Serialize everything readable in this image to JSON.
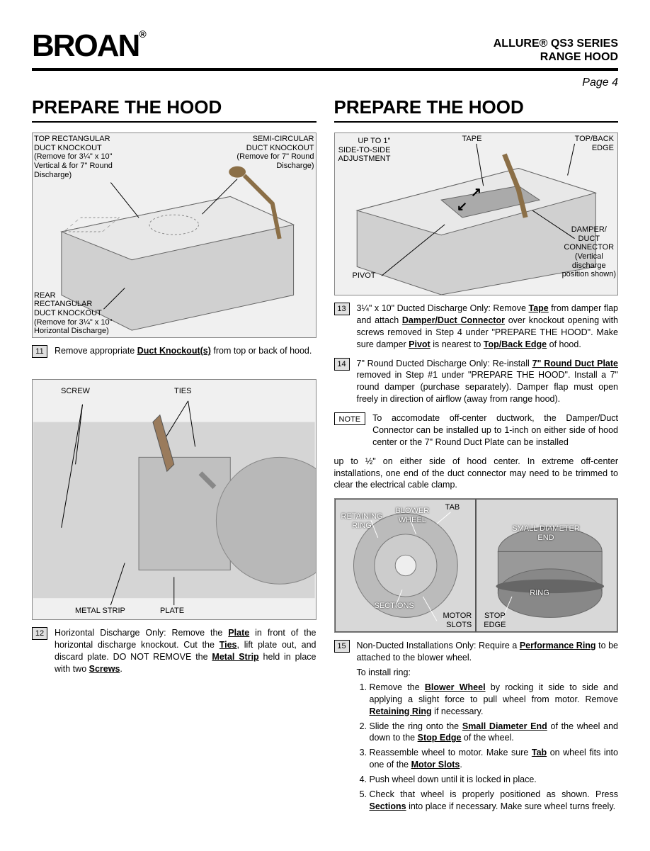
{
  "header": {
    "logo": "BROAN",
    "product_line": "ALLURE® QS3 SERIES",
    "product_type": "RANGE HOOD",
    "page": "Page 4"
  },
  "left": {
    "title": "PREPARE THE HOOD",
    "fig1": {
      "lbl_top_rect": "TOP RECTANGULAR\nDUCT KNOCKOUT",
      "lbl_top_rect_it": "(Remove for 3¼\" x 10\"\nVertical & for 7\" Round\nDischarge)",
      "lbl_semi": "SEMI-CIRCULAR\nDUCT KNOCKOUT",
      "lbl_semi_it": "(Remove for 7\" Round\nDischarge)",
      "lbl_rear": "REAR\nRECTANGULAR\nDUCT KNOCKOUT",
      "lbl_rear_it": "(Remove for 3¼\" x 10\"\nHorizontal Discharge)"
    },
    "step11": {
      "num": "11",
      "text": "Remove appropriate <span class='u'>Duct Knockout(s)</span> from top or back of hood."
    },
    "fig2": {
      "lbl_screw": "SCREW",
      "lbl_ties": "TIES",
      "lbl_metal_strip": "METAL STRIP",
      "lbl_plate": "PLATE"
    },
    "step12": {
      "num": "12",
      "text": "Horizontal Discharge Only: Remove the <span class='u'>Plate</span> in front of the horizontal discharge knockout. Cut the <span class='u'>Ties</span>, lift plate out, and discard plate. DO NOT REMOVE the <span class='u'>Metal Strip</span> held in place with two <span class='u'>Screws</span>."
    }
  },
  "right": {
    "title": "PREPARE THE HOOD",
    "fig3": {
      "lbl_adjust": "UP TO 1\"\nSIDE-TO-SIDE\nADJUSTMENT",
      "lbl_tape": "TAPE",
      "lbl_topedge": "TOP/BACK\nEDGE",
      "lbl_damper": "DAMPER/\nDUCT\nCONNECTOR",
      "lbl_damper_it": "(Vertical\ndischarge\nposition shown)",
      "lbl_pivot": "PIVOT"
    },
    "step13": {
      "num": "13",
      "text": "3¼\" x 10\" Ducted Discharge Only: Remove <span class='u'>Tape</span> from damper flap and attach <span class='u'>Damper/Duct Connector</span> over knockout opening with screws removed in Step 4 under \"PREPARE THE HOOD\". Make sure damper <span class='u'>Pivot</span> is nearest to <span class='u'>Top/Back Edge</span> of hood."
    },
    "step14": {
      "num": "14",
      "text": "7\" Round Ducted Discharge Only: Re-install <span class='u'>7\" Round Duct Plate</span> removed in Step #1 under \"PREPARE THE HOOD\". Install a 7\" round damper (purchase separately). Damper flap must open freely in direction of airflow (away from range hood)."
    },
    "note": {
      "label": "NOTE",
      "text": "To accomodate off-center ductwork, the Damper/Duct Connector can be installed up to 1-inch on either side of hood center or the 7\" Round Duct Plate can be installed"
    },
    "note_cont": "up to ½\" on either side of hood center. In extreme off-center installations, one end of the duct connector may need to be trimmed to clear the electrical cable clamp.",
    "fig4": {
      "lbl_retaining": "RETAINING\nRING",
      "lbl_blower": "BLOWER\nWHEEL",
      "lbl_tab": "TAB",
      "lbl_sections": "SECTIONS",
      "lbl_motor_slots": "MOTOR\nSLOTS",
      "lbl_small": "SMALL DIAMETER\nEND",
      "lbl_ring": "RING",
      "lbl_stop": "STOP\nEDGE"
    },
    "step15": {
      "num": "15",
      "text": "Non-Ducted Installations Only: Require a <span class='u'>Performance Ring</span> to be attached to the blower wheel.",
      "intro": "To install ring:",
      "items": [
        "Remove the <span class='u'>Blower Wheel</span> by rocking it side to side and applying a slight force to pull wheel from motor. Remove <span class='u'>Retaining Ring</span> if necessary.",
        "Slide the ring onto the <span class='u'>Small Diameter End</span> of the wheel and down to the <span class='u'>Stop Edge</span> of the wheel.",
        "Reassemble wheel to motor. Make sure <span class='u'>Tab</span> on wheel fits into one of the <span class='u'>Motor Slots</span>.",
        "Push wheel down until it is locked in place.",
        "Check that wheel is properly positioned as shown. Press <span class='u'>Sections</span> into place if necessary. Make sure wheel turns freely."
      ]
    }
  }
}
